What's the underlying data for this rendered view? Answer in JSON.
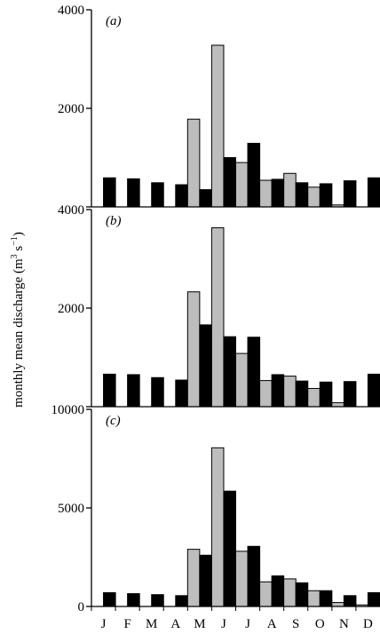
{
  "figure": {
    "ylabel": "monthly mean discharge (m",
    "ylabel_sup1": "3",
    "ylabel_mid": " s",
    "ylabel_sup2": "−1",
    "ylabel_end": ")"
  },
  "colors": {
    "grey": "#bdbdbd",
    "black": "#000000"
  },
  "chart_data": [
    {
      "type": "bar",
      "panel_label": "(a)",
      "categories": [
        "J",
        "F",
        "M",
        "A",
        "M",
        "J",
        "J",
        "A",
        "S",
        "O",
        "N",
        "D"
      ],
      "ylim": [
        0,
        4000
      ],
      "yticks": [
        0,
        2000,
        4000
      ],
      "ytick_labels": [
        "",
        "2000",
        "4000"
      ],
      "series": [
        {
          "color": "grey",
          "values": [
            0,
            0,
            0,
            0,
            1780,
            3280,
            900,
            540,
            680,
            400,
            40,
            0
          ]
        },
        {
          "color": "black",
          "values": [
            590,
            570,
            490,
            450,
            350,
            1000,
            1290,
            560,
            490,
            470,
            530,
            590
          ]
        }
      ]
    },
    {
      "type": "bar",
      "panel_label": "(b)",
      "categories": [
        "J",
        "F",
        "M",
        "A",
        "M",
        "J",
        "J",
        "A",
        "S",
        "O",
        "N",
        "D"
      ],
      "ylim": [
        0,
        4000
      ],
      "yticks": [
        0,
        2000,
        4000
      ],
      "ytick_labels": [
        "",
        "2000",
        "4000"
      ],
      "series": [
        {
          "color": "grey",
          "values": [
            0,
            0,
            0,
            0,
            2330,
            3630,
            1080,
            530,
            620,
            370,
            80,
            0
          ]
        },
        {
          "color": "black",
          "values": [
            660,
            650,
            590,
            540,
            1660,
            1420,
            1410,
            650,
            520,
            500,
            510,
            660
          ]
        }
      ]
    },
    {
      "type": "bar",
      "panel_label": "(c)",
      "categories": [
        "J",
        "F",
        "M",
        "A",
        "M",
        "J",
        "J",
        "A",
        "S",
        "O",
        "N",
        "D"
      ],
      "ylim": [
        0,
        10000
      ],
      "yticks": [
        0,
        5000,
        10000
      ],
      "ytick_labels": [
        "0",
        "5000",
        "10000"
      ],
      "series": [
        {
          "color": "grey",
          "values": [
            0,
            0,
            0,
            0,
            2900,
            8050,
            2800,
            1250,
            1400,
            800,
            200,
            80
          ]
        },
        {
          "color": "black",
          "values": [
            700,
            650,
            600,
            550,
            2600,
            5850,
            3050,
            1550,
            1200,
            800,
            550,
            700
          ]
        }
      ]
    }
  ]
}
